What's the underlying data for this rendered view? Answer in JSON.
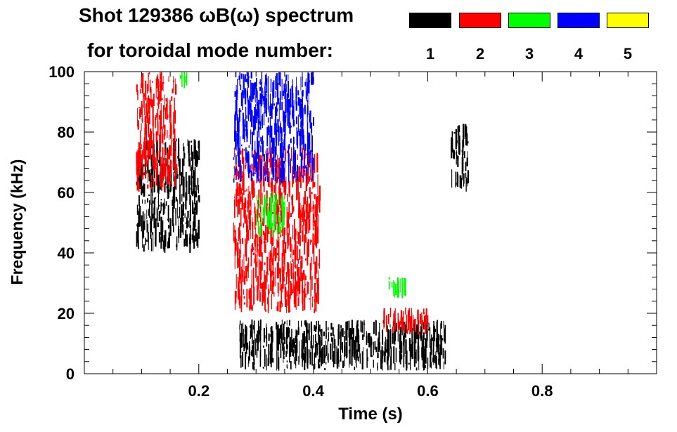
{
  "chart_data": {
    "type": "heatmap",
    "title_line1": "Shot 129386 ωB(ω) spectrum",
    "title_line2": "for toroidal mode number:",
    "xlabel": "Time (s)",
    "ylabel": "Frequency (kHz)",
    "xlim": [
      0,
      1.0
    ],
    "ylim": [
      0,
      100
    ],
    "x_ticks": [
      0.2,
      0.4,
      0.6,
      0.8
    ],
    "x_tick_labels": [
      "0.2",
      "0.4",
      "0.6",
      "0.8"
    ],
    "y_ticks": [
      0,
      20,
      40,
      60,
      80,
      100
    ],
    "y_tick_labels": [
      "0",
      "20",
      "40",
      "60",
      "80",
      "100"
    ],
    "legend": [
      {
        "label": "1",
        "color": "#000000"
      },
      {
        "label": "2",
        "color": "#ff0000"
      },
      {
        "label": "3",
        "color": "#00ff00"
      },
      {
        "label": "4",
        "color": "#0000ff"
      },
      {
        "label": "5",
        "color": "#ffff00"
      }
    ],
    "regions": [
      {
        "mode": "1",
        "t": [
          0.09,
          0.2
        ],
        "f": [
          40,
          78
        ],
        "note": "broadband n=1 burst near 70 kHz"
      },
      {
        "mode": "2",
        "t": [
          0.09,
          0.16
        ],
        "f": [
          60,
          100
        ],
        "note": "n=2 activity around 80-85 kHz"
      },
      {
        "mode": "3",
        "t": [
          0.16,
          0.18
        ],
        "f": [
          95,
          100
        ]
      },
      {
        "mode": "2",
        "t": [
          0.26,
          0.41
        ],
        "f": [
          20,
          75
        ],
        "note": "dense n=2 chirping band"
      },
      {
        "mode": "4",
        "t": [
          0.26,
          0.4
        ],
        "f": [
          63,
          100
        ],
        "note": "n=4 downward sweep from ~90 to ~63 kHz"
      },
      {
        "mode": "3",
        "t": [
          0.3,
          0.35
        ],
        "f": [
          45,
          60
        ]
      },
      {
        "mode": "1",
        "t": [
          0.27,
          0.63
        ],
        "f": [
          1,
          18
        ],
        "note": "low-frequency n=1 modes"
      },
      {
        "mode": "2",
        "t": [
          0.52,
          0.6
        ],
        "f": [
          13,
          22
        ],
        "note": "n=2 cross pattern near 0.55 s"
      },
      {
        "mode": "3",
        "t": [
          0.53,
          0.56
        ],
        "f": [
          25,
          32
        ]
      },
      {
        "mode": "1",
        "t": [
          0.64,
          0.67
        ],
        "f": [
          60,
          83
        ]
      }
    ]
  }
}
